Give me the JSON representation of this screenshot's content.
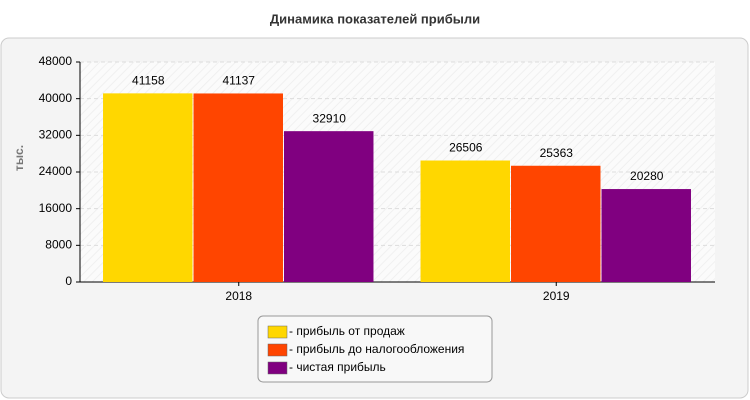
{
  "chart_data": {
    "type": "bar",
    "title": "Динамика показателей прибыли",
    "y_label": "тыс.",
    "categories": [
      "2018",
      "2019"
    ],
    "series": [
      {
        "name": "- прибыль от продаж",
        "color": "#ffd700",
        "values": [
          41158,
          26506
        ]
      },
      {
        "name": "- прибыль до налогообложения",
        "color": "#ff4500",
        "values": [
          41137,
          25363
        ]
      },
      {
        "name": "- чистая прибыль",
        "color": "#800080",
        "values": [
          32910,
          20280
        ]
      }
    ],
    "ylim": [
      0,
      48000
    ],
    "yticks": [
      0,
      8000,
      16000,
      24000,
      32000,
      40000,
      48000
    ],
    "grid": true,
    "legend": "bottom"
  }
}
